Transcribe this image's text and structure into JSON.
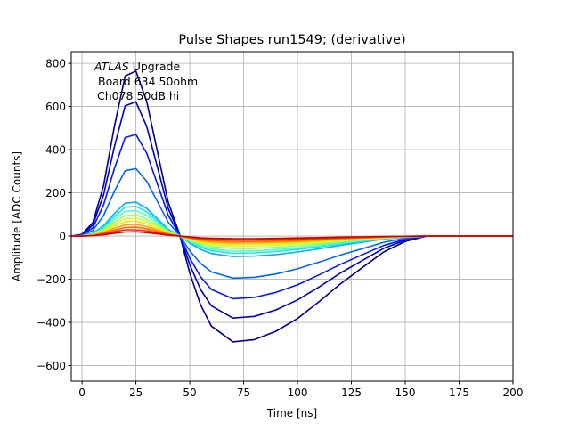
{
  "chart_data": {
    "type": "line",
    "title": "Pulse Shapes run1549; (derivative)",
    "xlabel": "Time [ns]",
    "ylabel": "Amplitude [ADC Counts]",
    "xlim": [
      -5,
      200
    ],
    "ylim": [
      -672,
      854
    ],
    "xticks": [
      0,
      25,
      50,
      75,
      100,
      125,
      150,
      175,
      200
    ],
    "yticks": [
      -600,
      -400,
      -200,
      0,
      200,
      400,
      600,
      800
    ],
    "xtick_labels": [
      "0",
      "25",
      "50",
      "75",
      "100",
      "125",
      "150",
      "175",
      "200"
    ],
    "ytick_labels": [
      "−600",
      "−400",
      "−200",
      "0",
      "200",
      "400",
      "600",
      "800"
    ],
    "grid": true,
    "annotation": {
      "line1_italic": "ATLAS",
      "line1_rest": " Upgrade",
      "line2": "Board 634 50ohm",
      "line3": "Ch078 50dB hi"
    },
    "colormap": "jet",
    "x": [
      -5,
      0,
      5,
      10,
      15,
      20,
      25,
      30,
      35,
      40,
      45,
      50,
      55,
      60,
      70,
      80,
      90,
      100,
      110,
      120,
      130,
      140,
      150,
      160,
      175,
      200
    ],
    "series": [
      {
        "color": "#00008f",
        "values": [
          0,
          8,
          62,
          234,
          507,
          741,
          764,
          624,
          390,
          156,
          16,
          -172,
          -319,
          -417,
          -490,
          -480,
          -441,
          -382,
          -304,
          -221,
          -147,
          -74,
          -25,
          0,
          0,
          0
        ]
      },
      {
        "color": "#0000c8",
        "values": [
          0,
          6,
          51,
          191,
          413,
          603,
          622,
          508,
          318,
          127,
          13,
          -133,
          -247,
          -323,
          -380,
          -372,
          -342,
          -296,
          -236,
          -171,
          -114,
          -57,
          -19,
          0,
          0,
          0
        ]
      },
      {
        "color": "#0018ff",
        "values": [
          0,
          5,
          38,
          144,
          312,
          456,
          470,
          384,
          240,
          96,
          10,
          -102,
          -189,
          -247,
          -290,
          -284,
          -261,
          -226,
          -180,
          -131,
          -87,
          -44,
          -15,
          0,
          0,
          0
        ]
      },
      {
        "color": "#0064ff",
        "values": [
          0,
          3,
          25,
          95,
          207,
          302,
          312,
          254,
          159,
          64,
          6,
          -68,
          -127,
          -166,
          -195,
          -191,
          -176,
          -152,
          -121,
          -88,
          -59,
          -29,
          -10,
          0,
          0,
          0
        ]
      },
      {
        "color": "#00b0ff",
        "values": [
          0,
          2,
          13,
          48,
          104,
          152,
          157,
          128,
          80,
          32,
          3,
          -33,
          -62,
          -81,
          -95,
          -93,
          -86,
          -74,
          -59,
          -43,
          -29,
          -14,
          -5,
          0,
          0,
          0
        ]
      },
      {
        "color": "#10e8f0",
        "values": [
          0,
          1,
          11,
          42,
          91,
          133,
          137,
          112,
          70,
          28,
          3,
          -28,
          -52,
          -68,
          -80,
          -78,
          -72,
          -62,
          -50,
          -36,
          -24,
          -12,
          -4,
          0,
          0,
          0
        ]
      },
      {
        "color": "#50ffb0",
        "values": [
          0,
          1,
          10,
          36,
          78,
          114,
          118,
          96,
          60,
          24,
          2,
          -25,
          -46,
          -60,
          -70,
          -69,
          -63,
          -55,
          -43,
          -32,
          -21,
          -11,
          -4,
          0,
          0,
          0
        ]
      },
      {
        "color": "#90ff68",
        "values": [
          0,
          1,
          8,
          30,
          65,
          95,
          98,
          80,
          50,
          20,
          2,
          -20,
          -38,
          -49,
          -58,
          -57,
          -52,
          -45,
          -36,
          -26,
          -17,
          -9,
          -3,
          0,
          0,
          0
        ]
      },
      {
        "color": "#c8ff30",
        "values": [
          0,
          1,
          7,
          26,
          55,
          81,
          83,
          68,
          43,
          17,
          2,
          -17,
          -31,
          -41,
          -48,
          -47,
          -43,
          -37,
          -30,
          -22,
          -14,
          -7,
          -2,
          0,
          0,
          0
        ]
      },
      {
        "color": "#ffe000",
        "values": [
          0,
          1,
          6,
          21,
          46,
          67,
          69,
          56,
          35,
          14,
          1,
          -14,
          -26,
          -34,
          -40,
          -39,
          -36,
          -31,
          -25,
          -18,
          -12,
          -6,
          -2,
          0,
          0,
          0
        ]
      },
      {
        "color": "#ffa000",
        "values": [
          0,
          1,
          4,
          17,
          36,
          52,
          54,
          44,
          28,
          11,
          1,
          -11,
          -21,
          -27,
          -32,
          -31,
          -29,
          -25,
          -20,
          -14,
          -10,
          -5,
          -2,
          0,
          0,
          0
        ]
      },
      {
        "color": "#ff6000",
        "values": [
          0,
          0,
          3,
          13,
          27,
          40,
          41,
          34,
          21,
          8,
          1,
          -9,
          -16,
          -21,
          -25,
          -25,
          -23,
          -20,
          -16,
          -11,
          -8,
          -4,
          -1,
          0,
          0,
          0
        ]
      },
      {
        "color": "#ff2000",
        "values": [
          0,
          0,
          2,
          9,
          20,
          29,
          29,
          24,
          15,
          6,
          1,
          -6,
          -12,
          -15,
          -18,
          -18,
          -16,
          -14,
          -11,
          -8,
          -5,
          -3,
          -1,
          0,
          0,
          0
        ]
      },
      {
        "color": "#d00000",
        "values": [
          0,
          0,
          2,
          6,
          13,
          19,
          20,
          16,
          10,
          4,
          0,
          -4,
          -8,
          -10,
          -12,
          -12,
          -11,
          -9,
          -7,
          -5,
          -4,
          -2,
          -1,
          0,
          0,
          0
        ]
      }
    ]
  }
}
